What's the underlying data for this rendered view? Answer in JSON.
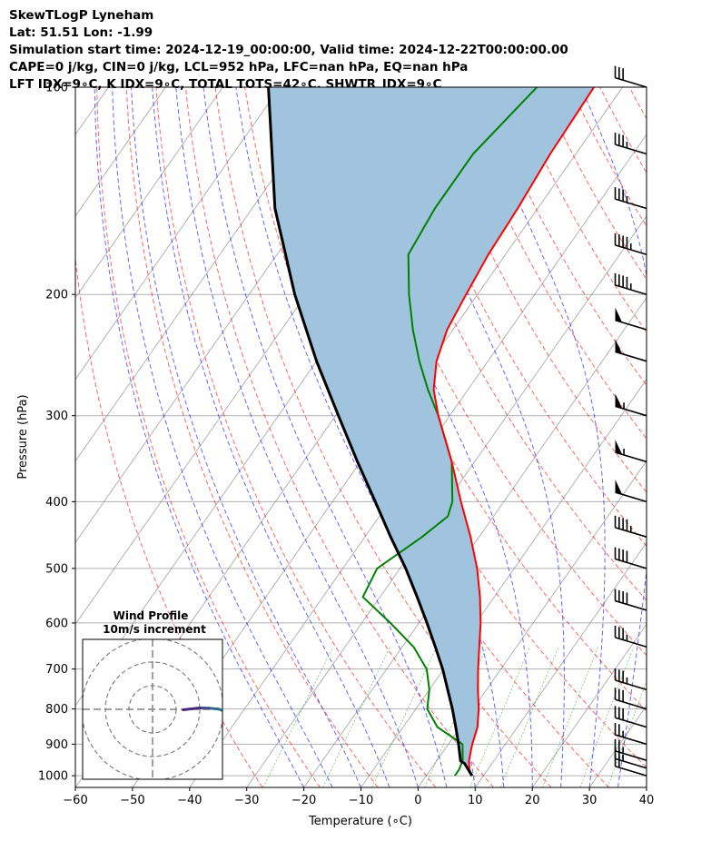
{
  "header": {
    "line1": "SkewTLogP Lyneham",
    "line2": "Lat: 51.51   Lon: -1.99",
    "line3": "Simulation start time: 2024-12-19_00:00:00, Valid time: 2024-12-22T00:00:00.00",
    "line4": "CAPE=0 j/kg, CIN=0 j/kg, LCL=952 hPa, LFC=nan hPa, EQ=nan hPa",
    "line5": "LFT IDX=9∘C, K IDX=9∘C, TOTAL TOTS=42∘C, SHWTR_IDX=9∘C"
  },
  "chart_data": [
    {
      "type": "line",
      "subtype": "skew-t log-p",
      "xlabel": "Temperature (∘C)",
      "ylabel": "Pressure (hPa)",
      "xlim": [
        -60,
        40
      ],
      "ylim": [
        1040,
        100
      ],
      "y_scale": "log",
      "x_ticks": [
        -60,
        -50,
        -40,
        -30,
        -20,
        -10,
        0,
        10,
        20,
        30,
        40
      ],
      "y_ticks": [
        1000,
        900,
        800,
        700,
        600,
        500,
        400,
        300,
        200,
        100
      ],
      "grid": true,
      "series": [
        {
          "kind": "temperature",
          "color": "#ff0000",
          "points": [
            [
              1000,
              8
            ],
            [
              980,
              6.8
            ],
            [
              950,
              5.6
            ],
            [
              925,
              4.9
            ],
            [
              900,
              4.2
            ],
            [
              850,
              3
            ],
            [
              800,
              1
            ],
            [
              750,
              -1.5
            ],
            [
              700,
              -4
            ],
            [
              650,
              -6.5
            ],
            [
              600,
              -9.2
            ],
            [
              550,
              -12.5
            ],
            [
              500,
              -16.5
            ],
            [
              450,
              -21.5
            ],
            [
              400,
              -27.5
            ],
            [
              350,
              -34
            ],
            [
              300,
              -42
            ],
            [
              275,
              -46
            ],
            [
              250,
              -49
            ],
            [
              225,
              -51
            ],
            [
              200,
              -52
            ],
            [
              175,
              -53
            ],
            [
              150,
              -53.5
            ],
            [
              125,
              -54.5
            ],
            [
              100,
              -55
            ]
          ]
        },
        {
          "kind": "dewpoint",
          "color": "#008000",
          "points": [
            [
              1000,
              5
            ],
            [
              980,
              5
            ],
            [
              950,
              4.5
            ],
            [
              900,
              2.5
            ],
            [
              850,
              -4
            ],
            [
              800,
              -8
            ],
            [
              750,
              -10
            ],
            [
              700,
              -13
            ],
            [
              650,
              -18
            ],
            [
              600,
              -25
            ],
            [
              550,
              -33
            ],
            [
              500,
              -34
            ],
            [
              450,
              -30
            ],
            [
              420,
              -28
            ],
            [
              400,
              -29
            ],
            [
              350,
              -34
            ],
            [
              300,
              -42
            ],
            [
              275,
              -47
            ],
            [
              250,
              -52
            ],
            [
              225,
              -57
            ],
            [
              200,
              -62
            ],
            [
              175,
              -67
            ],
            [
              150,
              -68
            ],
            [
              125,
              -68
            ],
            [
              100,
              -65
            ]
          ]
        },
        {
          "kind": "parcel",
          "color": "#000000",
          "points": [
            [
              1000,
              8
            ],
            [
              960,
              5.2
            ],
            [
              952,
              4.2
            ],
            [
              900,
              1.8
            ],
            [
              850,
              -0.8
            ],
            [
              800,
              -3.6
            ],
            [
              750,
              -6.8
            ],
            [
              700,
              -10.2
            ],
            [
              650,
              -14.2
            ],
            [
              600,
              -18.6
            ],
            [
              550,
              -23.5
            ],
            [
              500,
              -29
            ],
            [
              450,
              -35.5
            ],
            [
              400,
              -42.5
            ],
            [
              350,
              -50.5
            ],
            [
              300,
              -59.5
            ],
            [
              250,
              -70
            ],
            [
              200,
              -82
            ],
            [
              150,
              -96
            ],
            [
              100,
              -112
            ]
          ]
        }
      ],
      "cape_cin_fill": {
        "color": "#a0c4de"
      },
      "wind_barbs": {
        "color": "#000000",
        "levels": [
          {
            "p": 1000,
            "kt": 20
          },
          {
            "p": 975,
            "kt": 25
          },
          {
            "p": 950,
            "kt": 25
          },
          {
            "p": 900,
            "kt": 25
          },
          {
            "p": 850,
            "kt": 30
          },
          {
            "p": 800,
            "kt": 30
          },
          {
            "p": 750,
            "kt": 35
          },
          {
            "p": 650,
            "kt": 35
          },
          {
            "p": 575,
            "kt": 40
          },
          {
            "p": 500,
            "kt": 40
          },
          {
            "p": 450,
            "kt": 45
          },
          {
            "p": 400,
            "kt": 50
          },
          {
            "p": 350,
            "kt": 55
          },
          {
            "p": 300,
            "kt": 55
          },
          {
            "p": 250,
            "kt": 50
          },
          {
            "p": 225,
            "kt": 50
          },
          {
            "p": 200,
            "kt": 45
          },
          {
            "p": 175,
            "kt": 45
          },
          {
            "p": 150,
            "kt": 35
          },
          {
            "p": 125,
            "kt": 35
          },
          {
            "p": 100,
            "kt": 30
          }
        ]
      },
      "reference_lines": {
        "dry_adiabat_color": "#ff0000",
        "moist_adiabat_color": "#0000ff",
        "mixing_ratio_color": "#0000ff",
        "isotherm_color": "#808080"
      }
    },
    {
      "type": "scatter",
      "subtype": "hodograph",
      "title": "Wind Profile",
      "subtitle": "10m/s increment",
      "ring_spacing_ms": 10,
      "colormap": "viridis",
      "trace": [
        [
          32.5,
          -3.5
        ],
        [
          33,
          -2.8
        ],
        [
          32.5,
          -2.5
        ],
        [
          31.5,
          -2.8
        ],
        [
          31,
          -2.3
        ],
        [
          30.5,
          -0.9
        ],
        [
          28,
          0.1
        ],
        [
          24,
          0.5
        ],
        [
          20,
          0.6
        ],
        [
          13,
          -0.2
        ]
      ]
    }
  ]
}
